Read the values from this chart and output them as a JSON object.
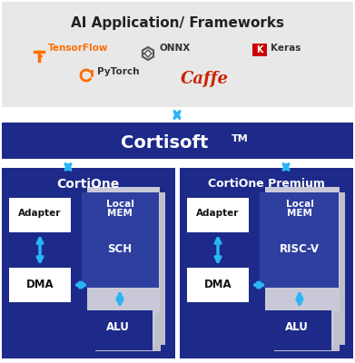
{
  "title": "AI Application/ Frameworks",
  "cortisoft_label": "Cortisoft ",
  "cortisoft_tm": "TM",
  "bg_top_color": "#E8E8E8",
  "cortisoft_bg": "#1E2A8A",
  "dark_blue": "#1E2A8A",
  "medium_blue": "#2E3FA0",
  "light_gray_page": "#C8C8D8",
  "white": "#FFFFFF",
  "arrow_color": "#29B6F6",
  "left_block_label": "CortiOne",
  "right_block_label": "CortiOne Premium",
  "adapter_label": "Adapter",
  "dma_label": "DMA",
  "local_mem_label": "Local\nMEM",
  "sch_label": "SCH",
  "riscv_label": "RISC-V",
  "alu_label": "ALU",
  "tf_color": "#FF6D00",
  "caffe_color": "#CC2200",
  "keras_red": "#CC0000",
  "text_dark": "#222222"
}
